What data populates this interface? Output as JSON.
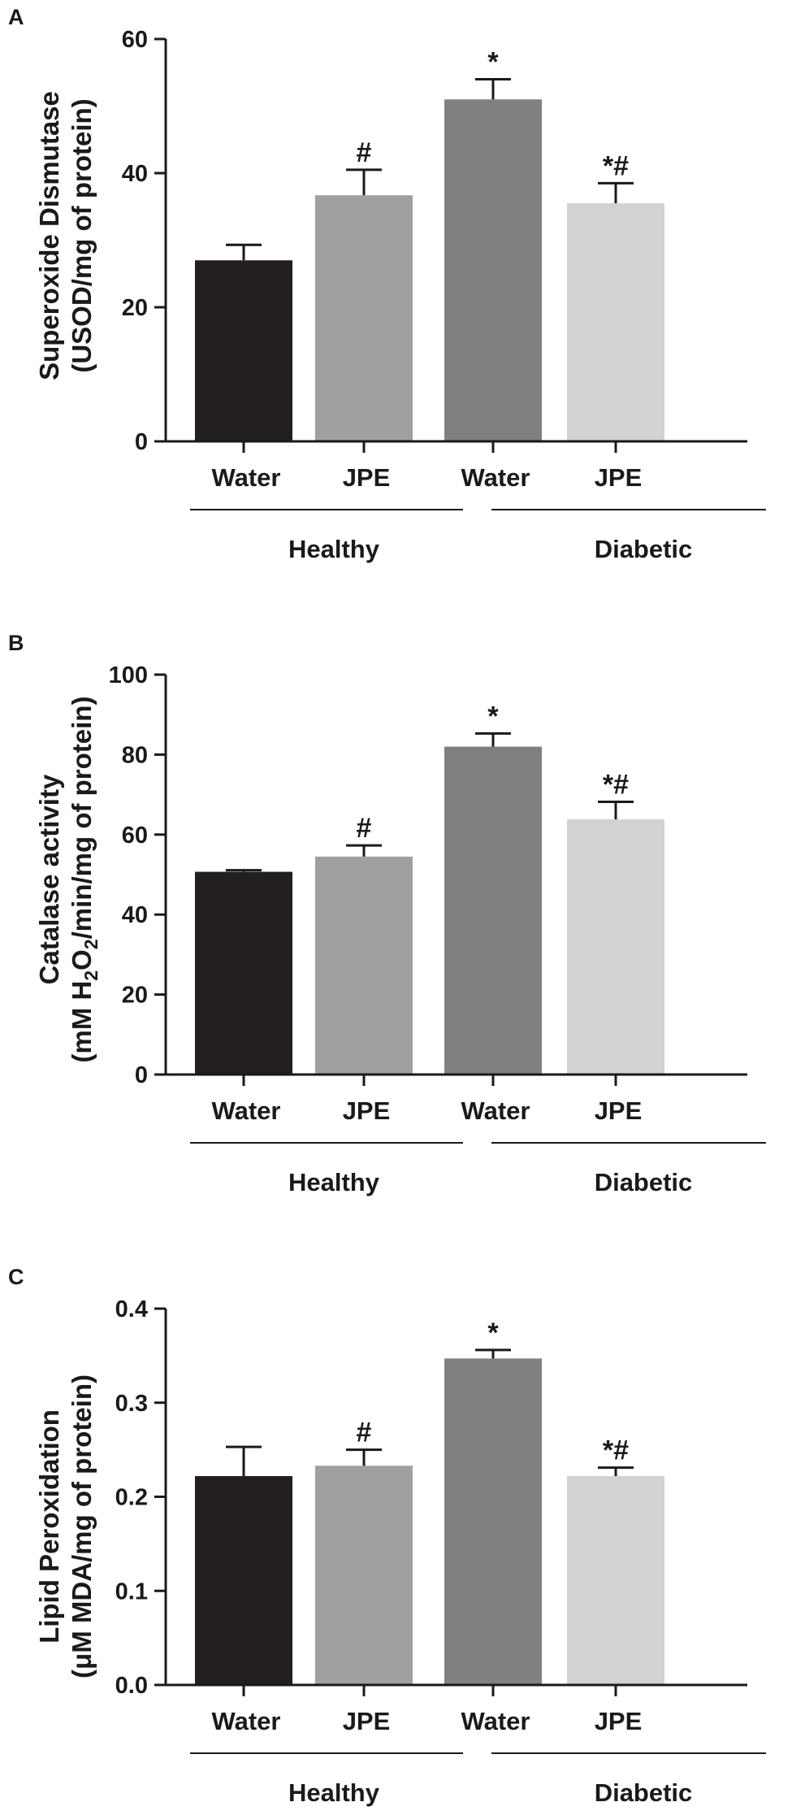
{
  "chart_data": [
    {
      "type": "bar",
      "panel": "A",
      "ylabel": [
        "Superoxide Dismutase",
        "(USOD/mg of protein)"
      ],
      "categories": [
        "Water",
        "JPE",
        "Water",
        "JPE"
      ],
      "groups": [
        {
          "label": "Healthy",
          "categories": [
            0,
            1
          ]
        },
        {
          "label": "Diabetic",
          "categories": [
            2,
            3
          ]
        }
      ],
      "values": [
        27,
        36.7,
        51,
        35.5
      ],
      "errors": [
        2.3,
        3.8,
        3.0,
        3.0
      ],
      "significance": [
        "",
        "#",
        "*",
        "*#"
      ],
      "colors": [
        "#231f20",
        "#a0a0a2",
        "#808082",
        "#d2d2d3"
      ],
      "ylim": [
        0,
        60
      ],
      "yticks": [
        "0",
        "20",
        "40",
        "60"
      ]
    },
    {
      "type": "bar",
      "panel": "B",
      "ylabel": [
        "Catalase activity",
        "(mM H",
        "2",
        "O",
        "2",
        "/min/mg of protein)"
      ],
      "categories": [
        "Water",
        "JPE",
        "Water",
        "JPE"
      ],
      "groups": [
        {
          "label": "Healthy",
          "categories": [
            0,
            1
          ]
        },
        {
          "label": "Diabetic",
          "categories": [
            2,
            3
          ]
        }
      ],
      "values": [
        50.7,
        54.5,
        82,
        63.8
      ],
      "errors": [
        0.4,
        2.8,
        3.3,
        4.4
      ],
      "significance": [
        "",
        "#",
        "*",
        "*#"
      ],
      "colors": [
        "#231f20",
        "#a0a0a2",
        "#808082",
        "#d2d2d3"
      ],
      "ylim": [
        0,
        100
      ],
      "yticks": [
        "0",
        "20",
        "40",
        "60",
        "80",
        "100"
      ]
    },
    {
      "type": "bar",
      "panel": "C",
      "ylabel": [
        "Lipid Peroxidation",
        "(μM MDA/mg of protein)"
      ],
      "categories": [
        "Water",
        "JPE",
        "Water",
        "JPE"
      ],
      "groups": [
        {
          "label": "Healthy",
          "categories": [
            0,
            1
          ]
        },
        {
          "label": "Diabetic",
          "categories": [
            2,
            3
          ]
        }
      ],
      "values": [
        0.222,
        0.233,
        0.347,
        0.222
      ],
      "errors": [
        0.031,
        0.017,
        0.009,
        0.009
      ],
      "significance": [
        "",
        "#",
        "*",
        "*#"
      ],
      "colors": [
        "#231f20",
        "#a0a0a2",
        "#808082",
        "#d2d2d3"
      ],
      "ylim": [
        0,
        0.4
      ],
      "yticks": [
        "0.0",
        "0.1",
        "0.2",
        "0.3",
        "0.4"
      ]
    }
  ]
}
